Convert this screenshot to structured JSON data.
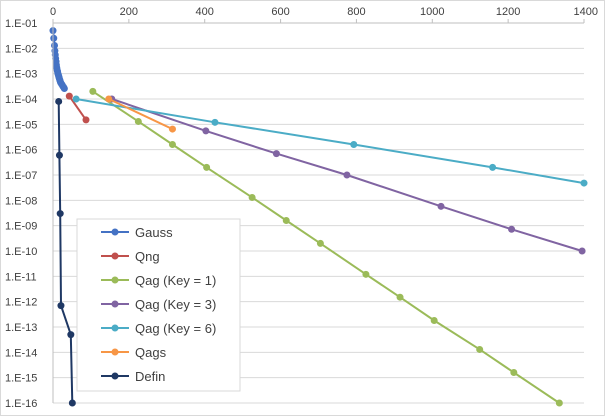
{
  "chart_data": {
    "type": "scatter",
    "title": "",
    "xlabel": "",
    "ylabel": "",
    "x_axis": {
      "position": "top",
      "min": 0,
      "max": 1400,
      "step": 200,
      "tick_labels": [
        "0",
        "200",
        "400",
        "600",
        "800",
        "1000",
        "1200",
        "1400"
      ]
    },
    "y_axis": {
      "scale": "log",
      "min_exp": -16,
      "max_exp": -1,
      "gridlines": true,
      "tick_labels": [
        "1.E-01",
        "1.E-02",
        "1.E-03",
        "1.E-04",
        "1.E-05",
        "1.E-06",
        "1.E-07",
        "1.E-08",
        "1.E-09",
        "1.E-10",
        "1.E-11",
        "1.E-12",
        "1.E-13",
        "1.E-14",
        "1.E-15",
        "1.E-16"
      ]
    },
    "legend": {
      "placement": "inside-bottom-left"
    },
    "series": [
      {
        "name": "Gauss",
        "color": "#4472C4",
        "points": [
          [
            0,
            0.05
          ],
          [
            2,
            0.025
          ],
          [
            4,
            0.013
          ],
          [
            5,
            0.008
          ],
          [
            6,
            0.0055
          ],
          [
            7,
            0.004
          ],
          [
            8,
            0.003
          ],
          [
            9,
            0.0022
          ],
          [
            10,
            0.0017
          ],
          [
            11,
            0.0014
          ],
          [
            12,
            0.0012
          ],
          [
            13,
            0.001
          ],
          [
            14,
            0.0009
          ],
          [
            15,
            0.0008
          ],
          [
            16,
            0.0007
          ],
          [
            17,
            0.00062
          ],
          [
            18,
            0.00056
          ],
          [
            19,
            0.0005
          ],
          [
            20,
            0.00045
          ],
          [
            22,
            0.0004
          ],
          [
            24,
            0.00036
          ],
          [
            26,
            0.00032
          ],
          [
            28,
            0.00029
          ],
          [
            30,
            0.00026
          ]
        ]
      },
      {
        "name": "Qng",
        "color": "#C0504D",
        "points": [
          [
            43,
            0.00013
          ],
          [
            87,
            1.5e-05
          ]
        ]
      },
      {
        "name": "Qag (Key = 1)",
        "color": "#9BBB59",
        "points": [
          [
            105,
            0.0002
          ],
          [
            225,
            1.3e-05
          ],
          [
            315,
            1.6e-06
          ],
          [
            405,
            2e-07
          ],
          [
            525,
            1.3e-08
          ],
          [
            615,
            1.6e-09
          ],
          [
            705,
            2e-10
          ],
          [
            825,
            1.2e-11
          ],
          [
            915,
            1.5e-12
          ],
          [
            1005,
            1.8e-13
          ],
          [
            1125,
            1.3e-14
          ],
          [
            1215,
            1.6e-15
          ],
          [
            1335,
            1e-16
          ]
        ]
      },
      {
        "name": "Qag (Key = 3)",
        "color": "#8064A2",
        "points": [
          [
            155,
            0.0001
          ],
          [
            403,
            5.5e-06
          ],
          [
            589,
            7e-07
          ],
          [
            775,
            1e-07
          ],
          [
            1023,
            5.8e-09
          ],
          [
            1209,
            7.2e-10
          ],
          [
            1395,
            1e-10
          ]
        ]
      },
      {
        "name": "Qag (Key = 6)",
        "color": "#4BACC6",
        "points": [
          [
            61,
            0.0001
          ],
          [
            427,
            1.2e-05
          ],
          [
            793,
            1.6e-06
          ],
          [
            1159,
            2e-07
          ],
          [
            1400,
            4.8e-08
          ]
        ]
      },
      {
        "name": "Qags",
        "color": "#F79646",
        "points": [
          [
            147,
            0.0001
          ],
          [
            315,
            6.5e-06
          ]
        ]
      },
      {
        "name": "Defin",
        "color": "#1F3864",
        "points": [
          [
            15,
            8e-05
          ],
          [
            17,
            6e-07
          ],
          [
            19,
            3e-09
          ],
          [
            21,
            7e-13
          ],
          [
            47,
            5e-14
          ],
          [
            51,
            1e-16
          ]
        ]
      }
    ]
  }
}
